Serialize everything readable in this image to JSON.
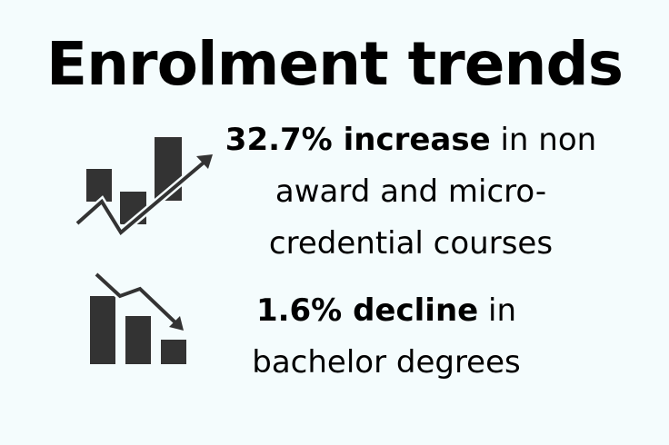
{
  "title": "Enrolment trends",
  "stats": [
    {
      "highlight": "32.7% increase",
      "line1_rest": " in non",
      "line2": "award and micro-",
      "line3": "credential courses",
      "icon": "bar-chart-up-arrow-icon"
    },
    {
      "highlight": "1.6% decline",
      "line1_rest": " in",
      "line2": "bachelor degrees",
      "icon": "bar-chart-down-arrow-icon"
    }
  ],
  "colors": {
    "background": "#f4fcfd",
    "icon": "#333333",
    "text": "#000000"
  }
}
